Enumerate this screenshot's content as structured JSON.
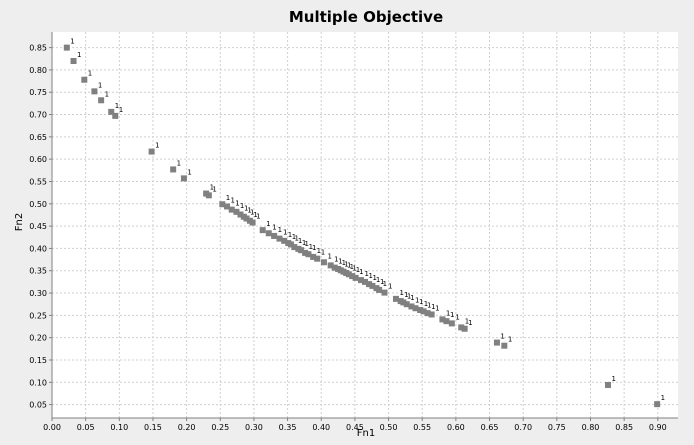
{
  "chart_data": {
    "type": "scatter",
    "title": "Multiple Objective",
    "xlabel": "Fn1",
    "ylabel": "Fn2",
    "xlim": [
      0.0,
      0.93
    ],
    "ylim": [
      0.02,
      0.885
    ],
    "xticks": [
      "0.00",
      "0.05",
      "0.10",
      "0.15",
      "0.20",
      "0.25",
      "0.30",
      "0.35",
      "0.40",
      "0.45",
      "0.50",
      "0.55",
      "0.60",
      "0.65",
      "0.70",
      "0.75",
      "0.80",
      "0.85",
      "0.90"
    ],
    "yticks": [
      "0.05",
      "0.10",
      "0.15",
      "0.20",
      "0.25",
      "0.30",
      "0.35",
      "0.40",
      "0.45",
      "0.50",
      "0.55",
      "0.60",
      "0.65",
      "0.70",
      "0.75",
      "0.80",
      "0.85"
    ],
    "grid": true,
    "marker_color": "#808080",
    "series": [
      {
        "point_label": "1",
        "points": [
          [
            0.022,
            0.85
          ],
          [
            0.032,
            0.82
          ],
          [
            0.048,
            0.778
          ],
          [
            0.063,
            0.752
          ],
          [
            0.073,
            0.732
          ],
          [
            0.088,
            0.706
          ],
          [
            0.094,
            0.697
          ],
          [
            0.148,
            0.617
          ],
          [
            0.18,
            0.577
          ],
          [
            0.196,
            0.557
          ],
          [
            0.229,
            0.523
          ],
          [
            0.233,
            0.519
          ],
          [
            0.253,
            0.499
          ],
          [
            0.26,
            0.494
          ],
          [
            0.267,
            0.487
          ],
          [
            0.274,
            0.482
          ],
          [
            0.28,
            0.476
          ],
          [
            0.285,
            0.471
          ],
          [
            0.289,
            0.467
          ],
          [
            0.294,
            0.462
          ],
          [
            0.298,
            0.458
          ],
          [
            0.313,
            0.441
          ],
          [
            0.322,
            0.434
          ],
          [
            0.33,
            0.428
          ],
          [
            0.338,
            0.422
          ],
          [
            0.345,
            0.417
          ],
          [
            0.351,
            0.412
          ],
          [
            0.355,
            0.409
          ],
          [
            0.36,
            0.403
          ],
          [
            0.366,
            0.399
          ],
          [
            0.37,
            0.396
          ],
          [
            0.376,
            0.39
          ],
          [
            0.381,
            0.387
          ],
          [
            0.388,
            0.381
          ],
          [
            0.394,
            0.377
          ],
          [
            0.404,
            0.369
          ],
          [
            0.414,
            0.362
          ],
          [
            0.42,
            0.357
          ],
          [
            0.425,
            0.354
          ],
          [
            0.429,
            0.351
          ],
          [
            0.433,
            0.348
          ],
          [
            0.437,
            0.345
          ],
          [
            0.441,
            0.342
          ],
          [
            0.446,
            0.338
          ],
          [
            0.451,
            0.334
          ],
          [
            0.459,
            0.329
          ],
          [
            0.465,
            0.325
          ],
          [
            0.471,
            0.32
          ],
          [
            0.476,
            0.316
          ],
          [
            0.482,
            0.311
          ],
          [
            0.486,
            0.307
          ],
          [
            0.494,
            0.301
          ],
          [
            0.511,
            0.287
          ],
          [
            0.518,
            0.282
          ],
          [
            0.522,
            0.279
          ],
          [
            0.527,
            0.275
          ],
          [
            0.534,
            0.27
          ],
          [
            0.54,
            0.266
          ],
          [
            0.547,
            0.262
          ],
          [
            0.552,
            0.259
          ],
          [
            0.558,
            0.255
          ],
          [
            0.564,
            0.252
          ],
          [
            0.58,
            0.241
          ],
          [
            0.586,
            0.237
          ],
          [
            0.594,
            0.232
          ],
          [
            0.608,
            0.223
          ],
          [
            0.613,
            0.22
          ],
          [
            0.661,
            0.189
          ],
          [
            0.672,
            0.182
          ],
          [
            0.826,
            0.094
          ],
          [
            0.899,
            0.051
          ]
        ]
      }
    ]
  }
}
